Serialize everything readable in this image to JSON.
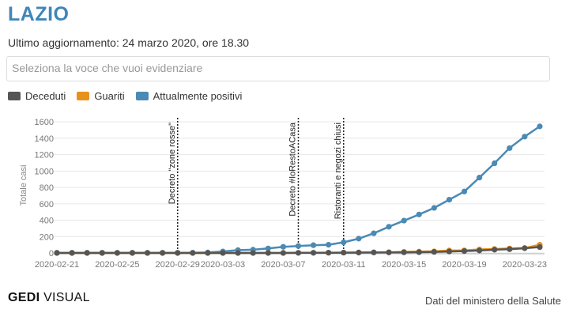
{
  "header": {
    "title": "LAZIO",
    "updated": "Ultimo aggiornamento: 24 marzo 2020, ore 18.30",
    "selector_placeholder": "Seleziona la voce che vuoi evidenziare"
  },
  "footer": {
    "logo_bold": "GEDI",
    "logo_rest": "VISUAL",
    "source": "Dati del ministero della Salute"
  },
  "chart_data": {
    "type": "line",
    "ylabel": "Totale casi",
    "ylim": [
      0,
      1650
    ],
    "yticks": [
      0,
      200,
      400,
      600,
      800,
      1000,
      1200,
      1400,
      1600
    ],
    "x": [
      "2020-02-21",
      "2020-02-22",
      "2020-02-23",
      "2020-02-24",
      "2020-02-25",
      "2020-02-26",
      "2020-02-27",
      "2020-02-28",
      "2020-02-29",
      "2020-03-01",
      "2020-03-02",
      "2020-03-03",
      "2020-03-04",
      "2020-03-05",
      "2020-03-06",
      "2020-03-07",
      "2020-03-08",
      "2020-03-09",
      "2020-03-10",
      "2020-03-11",
      "2020-03-12",
      "2020-03-13",
      "2020-03-14",
      "2020-03-15",
      "2020-03-16",
      "2020-03-17",
      "2020-03-18",
      "2020-03-19",
      "2020-03-20",
      "2020-03-21",
      "2020-03-22",
      "2020-03-23",
      "2020-03-24"
    ],
    "xticks": [
      "2020-02-21",
      "2020-02-25",
      "2020-02-29",
      "2020-03-03",
      "2020-03-07",
      "2020-03-11",
      "2020-03-15",
      "2020-03-19",
      "2020-03-23"
    ],
    "series": [
      {
        "name": "Deceduti",
        "color": "#555555",
        "values": [
          0,
          0,
          0,
          0,
          0,
          0,
          0,
          0,
          0,
          0,
          0,
          0,
          0,
          0,
          0,
          0,
          2,
          2,
          3,
          4,
          5,
          6,
          7,
          8,
          10,
          13,
          18,
          23,
          30,
          40,
          46,
          58,
          72
        ]
      },
      {
        "name": "Guariti",
        "color": "#e8921c",
        "values": [
          0,
          0,
          0,
          0,
          0,
          0,
          0,
          0,
          0,
          0,
          0,
          0,
          0,
          1,
          1,
          1,
          2,
          3,
          4,
          4,
          6,
          8,
          8,
          14,
          17,
          20,
          30,
          32,
          43,
          48,
          55,
          60,
          100
        ]
      },
      {
        "name": "Attualmente positivi",
        "color": "#4a8ab5",
        "values": [
          3,
          3,
          3,
          3,
          3,
          3,
          3,
          3,
          3,
          3,
          6,
          18,
          35,
          40,
          55,
          75,
          85,
          95,
          100,
          130,
          175,
          240,
          320,
          395,
          470,
          550,
          650,
          750,
          920,
          1095,
          1280,
          1420,
          1545
        ]
      }
    ],
    "annotations": [
      {
        "x": "2020-02-29",
        "label": "Decreto \"zone rosse\""
      },
      {
        "x": "2020-03-08",
        "label": "Decreto #IoRestoACasa"
      },
      {
        "x": "2020-03-11",
        "label": "Ristoranti e negozi chiusi"
      }
    ]
  }
}
